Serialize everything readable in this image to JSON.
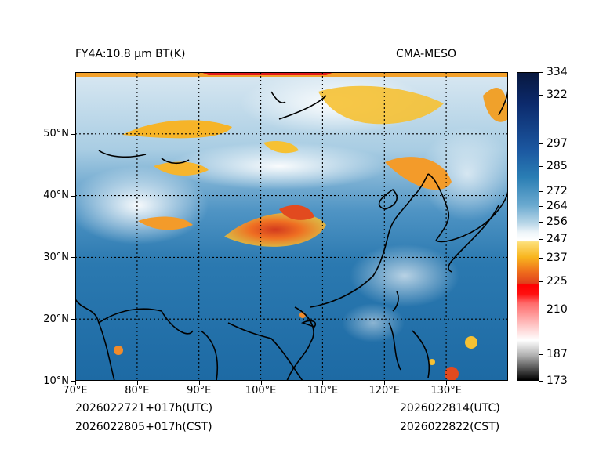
{
  "header": {
    "left_title": "FY4A:10.8 μm BT(K)",
    "right_title": "CMA-MESO"
  },
  "axes": {
    "x_ticks": [
      "70°E",
      "80°E",
      "90°E",
      "100°E",
      "110°E",
      "120°E",
      "130°E"
    ],
    "y_ticks": [
      "50°N",
      "40°N",
      "30°N",
      "20°N",
      "10°N"
    ],
    "lon_range": [
      70,
      140
    ],
    "lat_range": [
      10,
      60
    ]
  },
  "footer": {
    "utc_left": "2026022721+017h(UTC)",
    "cst_left": "2026022805+017h(CST)",
    "utc_right": "2026022814(UTC)",
    "cst_right": "2026022822(CST)"
  },
  "colorbar": {
    "min": 173,
    "max": 334,
    "ticks": [
      "334",
      "322",
      "297",
      "285",
      "272",
      "264",
      "256",
      "247",
      "237",
      "225",
      "210",
      "187",
      "173"
    ],
    "colors": {
      "ocean": "#1f6fa8",
      "cloud_cold": "#e8f1f7",
      "high_cloud": "#f9c02a",
      "convective": "#e2481e",
      "deep": "#ff0000"
    }
  }
}
